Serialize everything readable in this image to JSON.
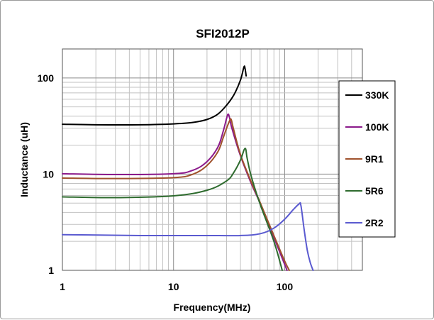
{
  "chart_data": {
    "type": "line",
    "title": "SFI2012P",
    "xlabel": "Frequency(MHz)",
    "ylabel": "Inductance (uH)",
    "x_scale": "log",
    "y_scale": "log",
    "xlim": [
      1,
      500
    ],
    "ylim": [
      1,
      200
    ],
    "x_ticks": [
      1,
      10,
      100
    ],
    "x_tick_labels": [
      "1",
      "10",
      "100"
    ],
    "y_ticks": [
      1,
      10,
      100
    ],
    "y_tick_labels": [
      "1",
      "10",
      "100"
    ],
    "grid": true,
    "legend_position": "right",
    "series": [
      {
        "name": "330K",
        "color": "#000000",
        "points": [
          [
            1,
            33
          ],
          [
            2,
            32.6
          ],
          [
            5,
            32.6
          ],
          [
            10,
            33.3
          ],
          [
            15,
            34.5
          ],
          [
            20,
            37
          ],
          [
            25,
            42
          ],
          [
            30,
            52
          ],
          [
            35,
            67
          ],
          [
            40,
            95
          ],
          [
            43,
            130
          ],
          [
            44,
            125
          ],
          [
            45,
            105
          ]
        ]
      },
      {
        "name": "100K",
        "color": "#8b1a8b",
        "points": [
          [
            1,
            10.1
          ],
          [
            3,
            9.9
          ],
          [
            10,
            10.1
          ],
          [
            15,
            11
          ],
          [
            20,
            13.5
          ],
          [
            25,
            19
          ],
          [
            28,
            28
          ],
          [
            30,
            38
          ],
          [
            31,
            42
          ],
          [
            32,
            38
          ],
          [
            33.5,
            30
          ],
          [
            40,
            15.5
          ],
          [
            50,
            8
          ],
          [
            60,
            5
          ],
          [
            80,
            2.2
          ],
          [
            100,
            1.15
          ],
          [
            105,
            1.0
          ]
        ]
      },
      {
        "name": "9R1",
        "color": "#a0522d",
        "points": [
          [
            1,
            9.1
          ],
          [
            3,
            9.0
          ],
          [
            10,
            9.2
          ],
          [
            15,
            10
          ],
          [
            20,
            12.3
          ],
          [
            25,
            17
          ],
          [
            28,
            24
          ],
          [
            30,
            30
          ],
          [
            32,
            36
          ],
          [
            33,
            37
          ],
          [
            34.5,
            30
          ],
          [
            40,
            16
          ],
          [
            50,
            8.3
          ],
          [
            60,
            5.1
          ],
          [
            80,
            2.3
          ],
          [
            100,
            1.25
          ],
          [
            110,
            1.0
          ]
        ]
      },
      {
        "name": "5R6",
        "color": "#2e6b2e",
        "points": [
          [
            1,
            5.8
          ],
          [
            3,
            5.7
          ],
          [
            10,
            5.95
          ],
          [
            20,
            6.8
          ],
          [
            30,
            8.5
          ],
          [
            35,
            10.5
          ],
          [
            40,
            14
          ],
          [
            44,
            18.5
          ],
          [
            46,
            14.5
          ],
          [
            50,
            9.5
          ],
          [
            60,
            4.9
          ],
          [
            80,
            2.0
          ],
          [
            95,
            1.0
          ]
        ]
      },
      {
        "name": "2R2",
        "color": "#5a5ad0",
        "points": [
          [
            1,
            2.35
          ],
          [
            5,
            2.3
          ],
          [
            10,
            2.3
          ],
          [
            20,
            2.3
          ],
          [
            40,
            2.3
          ],
          [
            60,
            2.4
          ],
          [
            80,
            2.75
          ],
          [
            100,
            3.4
          ],
          [
            120,
            4.3
          ],
          [
            135,
            4.9
          ],
          [
            140,
            4.7
          ],
          [
            150,
            2.6
          ],
          [
            160,
            1.6
          ],
          [
            170,
            1.2
          ],
          [
            180,
            1.0
          ]
        ]
      }
    ]
  }
}
